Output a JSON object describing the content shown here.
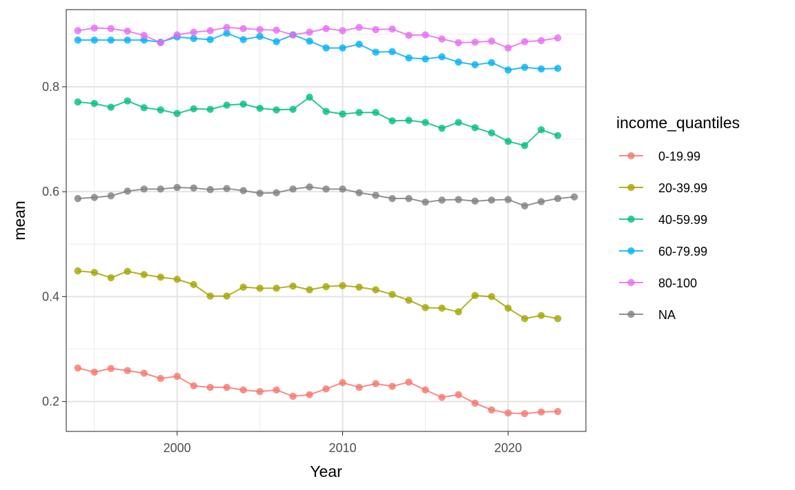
{
  "chart_data": {
    "type": "line",
    "xlabel": "Year",
    "ylabel": "mean",
    "xlim": [
      1993.3,
      2024.7
    ],
    "ylim": [
      0.143,
      0.947
    ],
    "x_ticks": [
      2000,
      2010,
      2020
    ],
    "x_minor_ticks": [
      1995,
      2005,
      2015
    ],
    "y_ticks": [
      0.2,
      0.4,
      0.6,
      0.8
    ],
    "y_minor_ticks": [
      0.3,
      0.5,
      0.7,
      0.9
    ],
    "grid": true,
    "legend": {
      "title": "income_quantiles",
      "position": "right"
    },
    "series": [
      {
        "name": "0-19.99",
        "color": "#F8766D",
        "x": [
          1994,
          1995,
          1996,
          1997,
          1998,
          1999,
          2000,
          2001,
          2002,
          2003,
          2004,
          2005,
          2006,
          2007,
          2008,
          2009,
          2010,
          2011,
          2012,
          2013,
          2014,
          2015,
          2016,
          2017,
          2018,
          2019,
          2020,
          2021,
          2022,
          2023
        ],
        "y": [
          0.264,
          0.256,
          0.263,
          0.259,
          0.254,
          0.244,
          0.248,
          0.23,
          0.227,
          0.227,
          0.222,
          0.219,
          0.222,
          0.21,
          0.213,
          0.224,
          0.236,
          0.227,
          0.234,
          0.229,
          0.237,
          0.222,
          0.208,
          0.213,
          0.197,
          0.184,
          0.178,
          0.177,
          0.18,
          0.181
        ]
      },
      {
        "name": "20-39.99",
        "color": "#A3A500",
        "x": [
          1994,
          1995,
          1996,
          1997,
          1998,
          1999,
          2000,
          2001,
          2002,
          2003,
          2004,
          2005,
          2006,
          2007,
          2008,
          2009,
          2010,
          2011,
          2012,
          2013,
          2014,
          2015,
          2016,
          2017,
          2018,
          2019,
          2020,
          2021,
          2022,
          2023
        ],
        "y": [
          0.449,
          0.446,
          0.436,
          0.448,
          0.442,
          0.437,
          0.433,
          0.423,
          0.401,
          0.401,
          0.418,
          0.416,
          0.416,
          0.42,
          0.413,
          0.419,
          0.421,
          0.418,
          0.413,
          0.404,
          0.393,
          0.379,
          0.378,
          0.371,
          0.402,
          0.4,
          0.378,
          0.358,
          0.364,
          0.358
        ]
      },
      {
        "name": "40-59.99",
        "color": "#00BF7D",
        "x": [
          1994,
          1995,
          1996,
          1997,
          1998,
          1999,
          2000,
          2001,
          2002,
          2003,
          2004,
          2005,
          2006,
          2007,
          2008,
          2009,
          2010,
          2011,
          2012,
          2013,
          2014,
          2015,
          2016,
          2017,
          2018,
          2019,
          2020,
          2021,
          2022,
          2023
        ],
        "y": [
          0.771,
          0.768,
          0.761,
          0.773,
          0.76,
          0.756,
          0.749,
          0.758,
          0.757,
          0.765,
          0.767,
          0.759,
          0.756,
          0.757,
          0.78,
          0.753,
          0.748,
          0.751,
          0.751,
          0.735,
          0.736,
          0.732,
          0.721,
          0.732,
          0.722,
          0.712,
          0.696,
          0.688,
          0.718,
          0.707
        ]
      },
      {
        "name": "60-79.99",
        "color": "#00B0F6",
        "x": [
          1994,
          1995,
          1996,
          1997,
          1998,
          1999,
          2000,
          2001,
          2002,
          2003,
          2004,
          2005,
          2006,
          2007,
          2008,
          2009,
          2010,
          2011,
          2012,
          2013,
          2014,
          2015,
          2016,
          2017,
          2018,
          2019,
          2020,
          2021,
          2022,
          2023
        ],
        "y": [
          0.889,
          0.889,
          0.889,
          0.889,
          0.889,
          0.885,
          0.895,
          0.892,
          0.89,
          0.902,
          0.89,
          0.896,
          0.886,
          0.899,
          0.887,
          0.874,
          0.874,
          0.881,
          0.866,
          0.867,
          0.855,
          0.853,
          0.857,
          0.847,
          0.842,
          0.846,
          0.832,
          0.837,
          0.834,
          0.835
        ]
      },
      {
        "name": "80-100",
        "color": "#E76BF3",
        "x": [
          1994,
          1995,
          1996,
          1997,
          1998,
          1999,
          2000,
          2001,
          2002,
          2003,
          2004,
          2005,
          2006,
          2007,
          2008,
          2009,
          2010,
          2011,
          2012,
          2013,
          2014,
          2015,
          2016,
          2017,
          2018,
          2019,
          2020,
          2021,
          2022,
          2023
        ],
        "y": [
          0.907,
          0.912,
          0.911,
          0.906,
          0.898,
          0.884,
          0.899,
          0.904,
          0.907,
          0.913,
          0.911,
          0.909,
          0.908,
          0.899,
          0.904,
          0.911,
          0.907,
          0.913,
          0.909,
          0.91,
          0.898,
          0.899,
          0.891,
          0.884,
          0.885,
          0.887,
          0.874,
          0.886,
          0.888,
          0.893
        ]
      },
      {
        "name": "NA",
        "color": "#7F7F7F",
        "x": [
          1994,
          1995,
          1996,
          1997,
          1998,
          1999,
          2000,
          2001,
          2002,
          2003,
          2004,
          2005,
          2006,
          2007,
          2008,
          2009,
          2010,
          2011,
          2012,
          2013,
          2014,
          2015,
          2016,
          2017,
          2018,
          2019,
          2020,
          2021,
          2022,
          2023,
          2024
        ],
        "y": [
          0.587,
          0.589,
          0.592,
          0.601,
          0.605,
          0.605,
          0.608,
          0.607,
          0.604,
          0.606,
          0.602,
          0.597,
          0.598,
          0.605,
          0.609,
          0.605,
          0.605,
          0.598,
          0.593,
          0.587,
          0.587,
          0.58,
          0.584,
          0.585,
          0.582,
          0.584,
          0.585,
          0.573,
          0.581,
          0.587,
          0.59
        ]
      }
    ]
  }
}
